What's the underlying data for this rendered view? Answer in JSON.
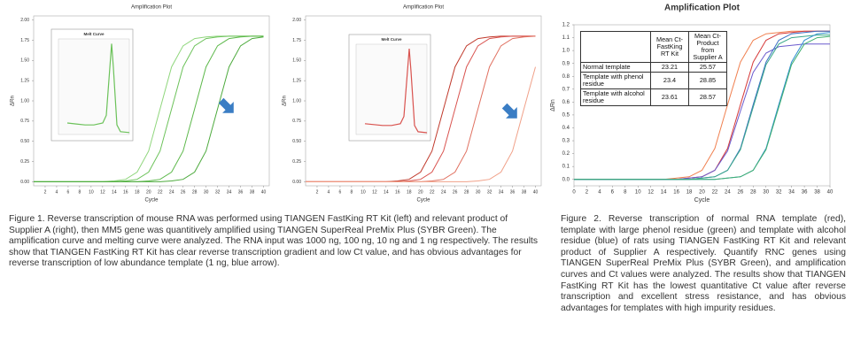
{
  "chart_data": [
    {
      "type": "line",
      "title": "Amplification Plot",
      "x_label": "Cycle",
      "y_label": "ΔRn",
      "xlim": [
        0,
        41
      ],
      "ylim": [
        -0.05,
        2.05
      ],
      "xticks": [
        2,
        4,
        6,
        8,
        10,
        12,
        14,
        16,
        18,
        20,
        22,
        24,
        26,
        28,
        30,
        32,
        34,
        36,
        38,
        40
      ],
      "yticks": [
        {
          "value": 0,
          "label": "0.00"
        },
        0.25,
        {
          "value": 0.5,
          "label": "0.50"
        },
        0.75,
        {
          "value": 1,
          "label": "1.00"
        },
        1.25,
        {
          "value": 1.5,
          "label": "1.50"
        },
        1.75,
        {
          "value": 2,
          "label": "2.00"
        }
      ],
      "grid": false,
      "x": [
        0,
        2,
        4,
        6,
        8,
        10,
        12,
        14,
        16,
        18,
        20,
        22,
        24,
        26,
        28,
        30,
        32,
        34,
        36,
        38,
        40
      ],
      "series": [
        {
          "color": "#8fd67c",
          "values": [
            0,
            0,
            0,
            0,
            0,
            0,
            0,
            0.01,
            0.03,
            0.12,
            0.38,
            0.9,
            1.42,
            1.68,
            1.77,
            1.79,
            1.8,
            1.8,
            1.8,
            1.8,
            1.8
          ]
        },
        {
          "color": "#6cc25a",
          "values": [
            0,
            0,
            0,
            0,
            0,
            0,
            0,
            0,
            0.01,
            0.03,
            0.12,
            0.38,
            0.9,
            1.42,
            1.68,
            1.77,
            1.79,
            1.8,
            1.8,
            1.8,
            1.8
          ]
        },
        {
          "color": "#5cb84a",
          "values": [
            0,
            0,
            0,
            0,
            0,
            0,
            0,
            0,
            0,
            0,
            0.01,
            0.03,
            0.12,
            0.38,
            0.9,
            1.42,
            1.68,
            1.77,
            1.79,
            1.8,
            1.8
          ]
        },
        {
          "color": "#4caa3c",
          "values": [
            0,
            0,
            0,
            0,
            0,
            0,
            0,
            0,
            0,
            0,
            0,
            0,
            0.01,
            0.03,
            0.12,
            0.38,
            0.9,
            1.42,
            1.68,
            1.77,
            1.79
          ]
        }
      ],
      "inset": {
        "type": "line",
        "title": "Melt Curve",
        "xlim": [
          55,
          95
        ],
        "ylim": [
          0,
          1
        ],
        "color": "#6cc25a",
        "x": [
          60,
          65,
          70,
          75,
          80,
          82,
          84,
          85,
          86,
          88,
          90,
          95
        ],
        "values": [
          0.12,
          0.11,
          0.1,
          0.1,
          0.12,
          0.2,
          0.7,
          0.95,
          0.7,
          0.1,
          0.03,
          0.02
        ]
      }
    },
    {
      "type": "line",
      "title": "Amplification Plot",
      "x_label": "Cycle",
      "y_label": "ΔRn",
      "xlim": [
        0,
        41
      ],
      "ylim": [
        -0.05,
        2.05
      ],
      "xticks": [
        2,
        4,
        6,
        8,
        10,
        12,
        14,
        16,
        18,
        20,
        22,
        24,
        26,
        28,
        30,
        32,
        34,
        36,
        38,
        40
      ],
      "yticks": [
        {
          "value": 0,
          "label": "0.00"
        },
        0.25,
        {
          "value": 0.5,
          "label": "0.50"
        },
        0.75,
        {
          "value": 1,
          "label": "1.00"
        },
        1.25,
        {
          "value": 1.5,
          "label": "1.50"
        },
        1.75,
        {
          "value": 2,
          "label": "2.00"
        }
      ],
      "grid": false,
      "x": [
        0,
        2,
        4,
        6,
        8,
        10,
        12,
        14,
        16,
        18,
        20,
        22,
        24,
        26,
        28,
        30,
        32,
        34,
        36,
        38,
        40
      ],
      "series": [
        {
          "color": "#c0392b",
          "values": [
            0,
            0,
            0,
            0,
            0,
            0,
            0,
            0,
            0.01,
            0.03,
            0.12,
            0.38,
            0.9,
            1.42,
            1.68,
            1.77,
            1.79,
            1.8,
            1.8,
            1.8,
            1.8
          ]
        },
        {
          "color": "#d9534f",
          "values": [
            0,
            0,
            0,
            0,
            0,
            0,
            0,
            0,
            0,
            0.01,
            0.03,
            0.12,
            0.38,
            0.9,
            1.42,
            1.68,
            1.77,
            1.79,
            1.8,
            1.8,
            1.8
          ]
        },
        {
          "color": "#e07060",
          "values": [
            0,
            0,
            0,
            0,
            0,
            0,
            0,
            0,
            0,
            0,
            0,
            0.01,
            0.03,
            0.12,
            0.38,
            0.9,
            1.42,
            1.68,
            1.77,
            1.79,
            1.8
          ]
        },
        {
          "color": "#f0a088",
          "values": [
            0,
            0,
            0,
            0,
            0,
            0,
            0,
            0,
            0,
            0,
            0,
            0,
            0,
            0,
            0,
            0.01,
            0.03,
            0.12,
            0.38,
            0.9,
            1.42
          ]
        }
      ],
      "inset": {
        "type": "line",
        "title": "Melt Curve",
        "xlim": [
          55,
          95
        ],
        "ylim": [
          0,
          1
        ],
        "color": "#d9534f",
        "x": [
          60,
          65,
          70,
          75,
          80,
          82,
          84,
          85,
          86,
          88,
          90,
          95
        ],
        "values": [
          0.12,
          0.11,
          0.1,
          0.1,
          0.12,
          0.2,
          0.7,
          0.95,
          0.7,
          0.1,
          0.03,
          0.02
        ]
      }
    },
    {
      "type": "line",
      "title": "Amplification Plot",
      "x_label": "Cycle",
      "y_label": "ΔRn",
      "xlim": [
        0,
        40
      ],
      "ylim": [
        -0.05,
        1.2
      ],
      "xticks": [
        0,
        2,
        4,
        6,
        8,
        10,
        12,
        14,
        16,
        18,
        20,
        22,
        24,
        26,
        28,
        30,
        32,
        34,
        36,
        38,
        40
      ],
      "yticks": [
        {
          "value": 0,
          "label": "0.0"
        },
        0.1,
        0.2,
        0.3,
        0.4,
        0.5,
        0.6,
        0.7,
        0.8,
        0.9,
        {
          "value": 1,
          "label": "1.0"
        },
        1.1,
        1.2
      ],
      "grid": false,
      "x": [
        0,
        2,
        4,
        6,
        8,
        10,
        12,
        14,
        16,
        18,
        20,
        22,
        24,
        26,
        28,
        30,
        32,
        34,
        36,
        38,
        40
      ],
      "series": [
        {
          "color": "#f08050",
          "values": [
            0,
            0,
            0,
            0,
            0,
            0,
            0,
            0,
            0.01,
            0.02,
            0.07,
            0.24,
            0.58,
            0.91,
            1.08,
            1.13,
            1.14,
            1.15,
            1.15,
            1.15,
            1.15
          ]
        },
        {
          "color": "#d63a3a",
          "values": [
            0,
            0,
            0,
            0,
            0,
            0,
            0,
            0,
            0,
            0.01,
            0.02,
            0.07,
            0.24,
            0.58,
            0.91,
            1.08,
            1.13,
            1.14,
            1.15,
            1.15,
            1.15
          ]
        },
        {
          "color": "#6a5acd",
          "values": [
            0,
            0,
            0,
            0,
            0,
            0,
            0,
            0,
            0,
            0.01,
            0.02,
            0.07,
            0.22,
            0.53,
            0.83,
            0.98,
            1.03,
            1.04,
            1.05,
            1.05,
            1.05
          ]
        },
        {
          "color": "#3a6fc4",
          "values": [
            0,
            0,
            0,
            0,
            0,
            0,
            0,
            0,
            0,
            0,
            0.01,
            0.02,
            0.07,
            0.24,
            0.58,
            0.91,
            1.08,
            1.13,
            1.14,
            1.15,
            1.15
          ]
        },
        {
          "color": "#3aa88a",
          "values": [
            0,
            0,
            0,
            0,
            0,
            0,
            0,
            0,
            0,
            0,
            0.01,
            0.02,
            0.07,
            0.23,
            0.56,
            0.89,
            1.05,
            1.1,
            1.11,
            1.12,
            1.12
          ]
        },
        {
          "color": "#2f8fd0",
          "values": [
            0,
            0,
            0,
            0,
            0,
            0,
            0,
            0,
            0,
            0,
            0,
            0,
            0.01,
            0.02,
            0.07,
            0.24,
            0.58,
            0.91,
            1.08,
            1.13,
            1.14
          ]
        },
        {
          "color": "#40b070",
          "values": [
            0,
            0,
            0,
            0,
            0,
            0,
            0,
            0,
            0,
            0,
            0,
            0,
            0.01,
            0.02,
            0.07,
            0.23,
            0.56,
            0.89,
            1.05,
            1.1,
            1.11
          ]
        }
      ],
      "table": {
        "header": [
          "Mean Ct-FastKing RT Kit",
          "Mean Ct-Product from Supplier A"
        ],
        "rows": [
          [
            "Normal template",
            "23.21",
            "25.57"
          ],
          [
            "Template with phenol residue",
            "23.4",
            "28.85"
          ],
          [
            "Template with alcohol residue",
            "23.61",
            "28.57"
          ]
        ]
      }
    }
  ],
  "captions": [
    "Figure 1. Reverse transcription of mouse RNA was performed using TIANGEN FastKing RT Kit (left) and relevant product of Supplier A (right), then MM5 gene was quantitively amplified using TIANGEN SuperReal PreMix Plus (SYBR Green). The amplification curve and melting curve were analyzed. The RNA input was 1000 ng, 100 ng, 10 ng and 1 ng respectively. The results show that TIANGEN FastKing RT Kit has clear reverse transcription gradient and low Ct value, and has obvious advantages for reverse transcription of low abundance template (1 ng, blue arrow).",
    "Figure 2. Reverse transcription of normal RNA template (red), template with large phenol residue (green) and template with alcohol residue (blue) of rats using TIANGEN FastKing RT Kit and relevant product of Supplier A respectively. Quantify RNC genes using TIANGEN SuperReal PreMix Plus (SYBR Green), and amplification curves and Ct values were analyzed. The results show that TIANGEN FastKing RT Kit has the lowest quantitative Ct value after reverse transcription and excellent stress resistance, and has obvious advantages for templates with high impurity residues."
  ]
}
